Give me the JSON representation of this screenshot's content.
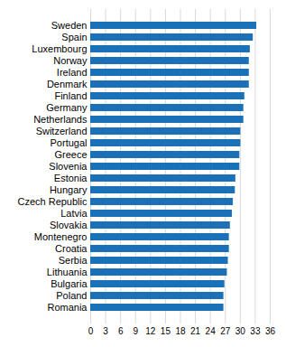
{
  "chart_data": {
    "type": "bar",
    "orientation": "horizontal",
    "categories": [
      "Sweden",
      "Spain",
      "Luxembourg",
      "Norway",
      "Ireland",
      "Denmark",
      "Finland",
      "Germany",
      "Netherlands",
      "Switzerland",
      "Portugal",
      "Greece",
      "Slovenia",
      "Estonia",
      "Hungary",
      "Czech Republic",
      "Latvia",
      "Slovakia",
      "Montenegro",
      "Croatia",
      "Serbia",
      "Lithuania",
      "Bulgaria",
      "Poland",
      "Romania"
    ],
    "values": [
      33.3,
      32.6,
      32.0,
      31.8,
      31.8,
      31.8,
      30.9,
      30.7,
      30.7,
      30.1,
      30.1,
      29.9,
      29.9,
      29.1,
      29.0,
      28.6,
      28.4,
      28.0,
      27.8,
      27.8,
      27.6,
      27.4,
      26.9,
      26.7,
      26.7
    ],
    "color": "#1a71b8",
    "xlim": [
      0,
      36
    ],
    "xticks": [
      0,
      3,
      6,
      9,
      12,
      15,
      18,
      21,
      24,
      27,
      30,
      33,
      36
    ],
    "grid": true
  }
}
